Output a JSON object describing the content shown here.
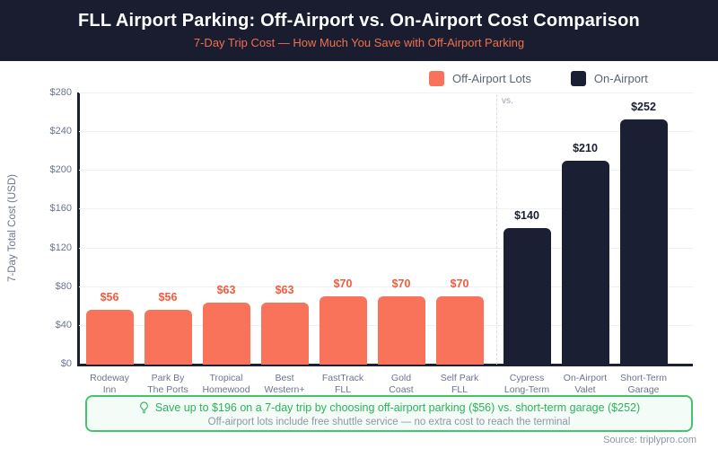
{
  "header": {
    "title": "FLL Airport Parking: Off-Airport vs. On-Airport Cost Comparison",
    "subtitle": "7-Day Trip Cost — How Much You Save with Off-Airport Parking"
  },
  "legend": {
    "items": [
      {
        "label": "Off-Airport Lots",
        "color": "#f8735a"
      },
      {
        "label": "On-Airport",
        "color": "#1b1f34"
      }
    ]
  },
  "chart_data": {
    "type": "bar",
    "title": "FLL Airport Parking: Off-Airport vs. On-Airport Cost Comparison",
    "subtitle": "7-Day Trip Cost — How Much You Save with Off-Airport Parking",
    "xlabel": "",
    "ylabel": "7-Day Total Cost (USD)",
    "ylim": [
      0,
      280
    ],
    "yticks": [
      0,
      40,
      80,
      120,
      160,
      200,
      240,
      280
    ],
    "ytick_labels": [
      "$0",
      "$40",
      "$80",
      "$120",
      "$160",
      "$200",
      "$240",
      "$280"
    ],
    "grid": true,
    "legend_position": "top-right",
    "divider_label": "vs.",
    "series": [
      {
        "name": "Off-Airport Lots",
        "color": "#f8735a",
        "label_color": "#f25b3d",
        "points": [
          {
            "category": "Rodeway\nInn",
            "value": 56,
            "label": "$56"
          },
          {
            "category": "Park By\nThe Ports",
            "value": 56,
            "label": "$56"
          },
          {
            "category": "Tropical\nHomewood",
            "value": 63,
            "label": "$63"
          },
          {
            "category": "Best\nWestern+",
            "value": 63,
            "label": "$63"
          },
          {
            "category": "FastTrack\nFLL",
            "value": 70,
            "label": "$70"
          },
          {
            "category": "Gold\nCoast",
            "value": 70,
            "label": "$70"
          },
          {
            "category": "Self Park\nFLL",
            "value": 70,
            "label": "$70"
          }
        ]
      },
      {
        "name": "On-Airport",
        "color": "#1b1f34",
        "label_color": "#1b1f34",
        "points": [
          {
            "category": "Cypress\nLong-Term",
            "value": 140,
            "label": "$140"
          },
          {
            "category": "On-Airport\nValet",
            "value": 210,
            "label": "$210"
          },
          {
            "category": "Short-Term\nGarage",
            "value": 252,
            "label": "$252"
          }
        ]
      }
    ]
  },
  "callout": {
    "line1": "Save up to $196 on a 7-day trip by choosing off-airport parking ($56) vs. short-term garage ($252)",
    "line2": "Off-airport lots include free shuttle service — no extra cost to reach the terminal"
  },
  "footer": {
    "source": "Source: triplypro.com"
  },
  "colors": {
    "header_bg": "#191d2f",
    "accent_orange": "#f8735a",
    "accent_dark": "#1b1f34",
    "callout_green": "#2db35b",
    "callout_border": "#44c46c"
  }
}
